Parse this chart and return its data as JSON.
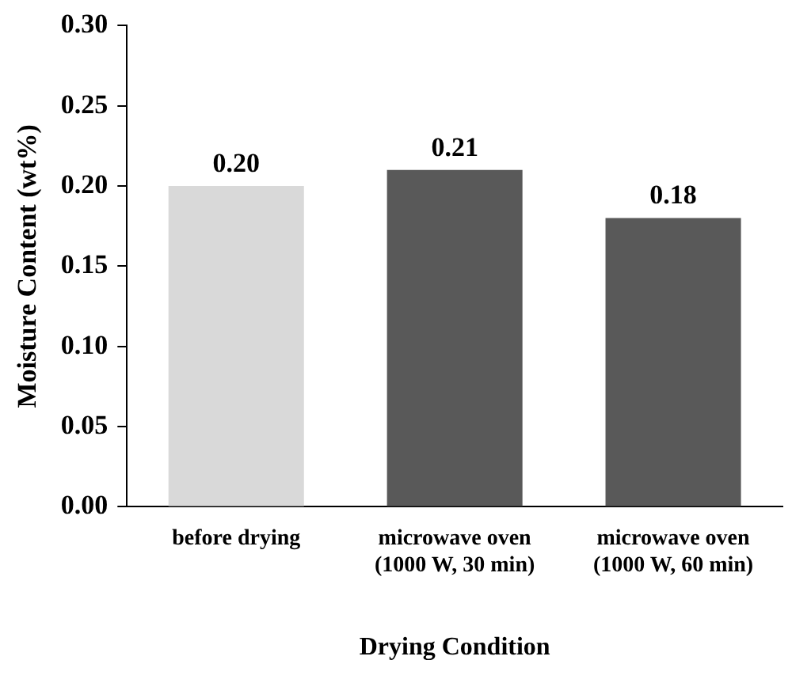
{
  "chart_data": {
    "type": "bar",
    "xlabel": "Drying Condition",
    "ylabel": "Moisture Content (wt%)",
    "categories": [
      "before drying",
      "microwave oven\n(1000 W, 30 min)",
      "microwave oven\n(1000 W, 60 min)"
    ],
    "values": [
      0.2,
      0.21,
      0.18
    ],
    "colors": [
      "#d9d9d9",
      "#595959",
      "#595959"
    ],
    "value_labels": [
      "0.20",
      "0.21",
      "0.18"
    ],
    "ylim": [
      0,
      0.3
    ],
    "yticks": [
      {
        "value": 0,
        "label": "0.00"
      },
      {
        "value": 0.05,
        "label": "0.05"
      },
      {
        "value": 0.1,
        "label": "0.10"
      },
      {
        "value": 0.15,
        "label": "0.15"
      },
      {
        "value": 0.2,
        "label": "0.20"
      },
      {
        "value": 0.25,
        "label": "0.25"
      },
      {
        "value": 0.3,
        "label": "0.30"
      }
    ],
    "grid": false,
    "legend": false
  }
}
